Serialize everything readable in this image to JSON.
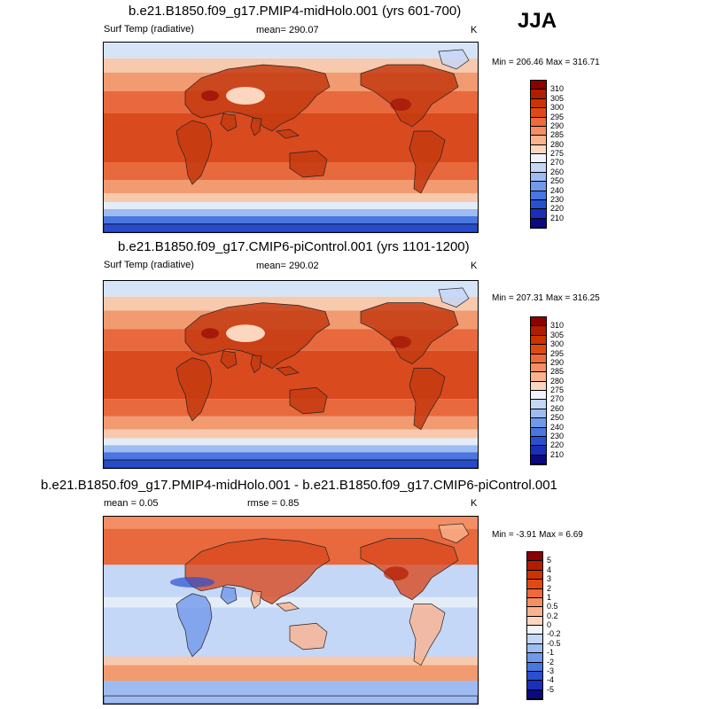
{
  "season": "JJA",
  "panels": [
    {
      "title": "b.e21.B1850.f09_g17.PMIP4-midHolo.001 (yrs 601-700)",
      "left_label": "Surf Temp (radiative)",
      "center_label": "mean= 290.07",
      "units": "K",
      "minmax": "Min = 206.46 Max = 316.71",
      "palette": "abs",
      "colorbar": {
        "labels": [
          "310",
          "305",
          "300",
          "295",
          "290",
          "285",
          "280",
          "275",
          "270",
          "260",
          "250",
          "240",
          "230",
          "220",
          "210"
        ],
        "colors": [
          "#8b0000",
          "#b01d00",
          "#cc3300",
          "#df4a14",
          "#ee6a3a",
          "#f58e64",
          "#fab38f",
          "#fdd6bf",
          "#f0f3fb",
          "#c5d7f7",
          "#9ebcf2",
          "#7199ea",
          "#4a76e0",
          "#2850d1",
          "#1a2fb8",
          "#0a0a80"
        ]
      }
    },
    {
      "title": "b.e21.B1850.f09_g17.CMIP6-piControl.001 (yrs 1101-1200)",
      "left_label": "Surf Temp (radiative)",
      "center_label": "mean= 290.02",
      "units": "K",
      "minmax": "Min = 207.31 Max = 316.25",
      "palette": "abs",
      "colorbar": {
        "labels": [
          "310",
          "305",
          "300",
          "295",
          "290",
          "285",
          "280",
          "275",
          "270",
          "260",
          "250",
          "240",
          "230",
          "220",
          "210"
        ],
        "colors": [
          "#8b0000",
          "#b01d00",
          "#cc3300",
          "#df4a14",
          "#ee6a3a",
          "#f58e64",
          "#fab38f",
          "#fdd6bf",
          "#f0f3fb",
          "#c5d7f7",
          "#9ebcf2",
          "#7199ea",
          "#4a76e0",
          "#2850d1",
          "#1a2fb8",
          "#0a0a80"
        ]
      }
    },
    {
      "title": "b.e21.B1850.f09_g17.PMIP4-midHolo.001 - b.e21.B1850.f09_g17.CMIP6-piControl.001",
      "left_label": "mean =   0.05",
      "center_label": "rmse =   0.85",
      "units": "K",
      "minmax": "Min =  -3.91 Max =   6.69",
      "palette": "diff",
      "colorbar": {
        "labels": [
          "5",
          "4",
          "3",
          "2",
          "1",
          "0.5",
          "0.2",
          "0",
          "-0.2",
          "-0.5",
          "-1",
          "-2",
          "-3",
          "-4",
          "-5"
        ],
        "colors": [
          "#8b0000",
          "#b01d00",
          "#cc3300",
          "#df4a14",
          "#ee6a3a",
          "#f58e64",
          "#fab38f",
          "#fdd6bf",
          "#f0f3fb",
          "#c5d7f7",
          "#9ebcf2",
          "#7199ea",
          "#4a76e0",
          "#2850d1",
          "#1a2fb8",
          "#0a0a80"
        ]
      }
    }
  ]
}
